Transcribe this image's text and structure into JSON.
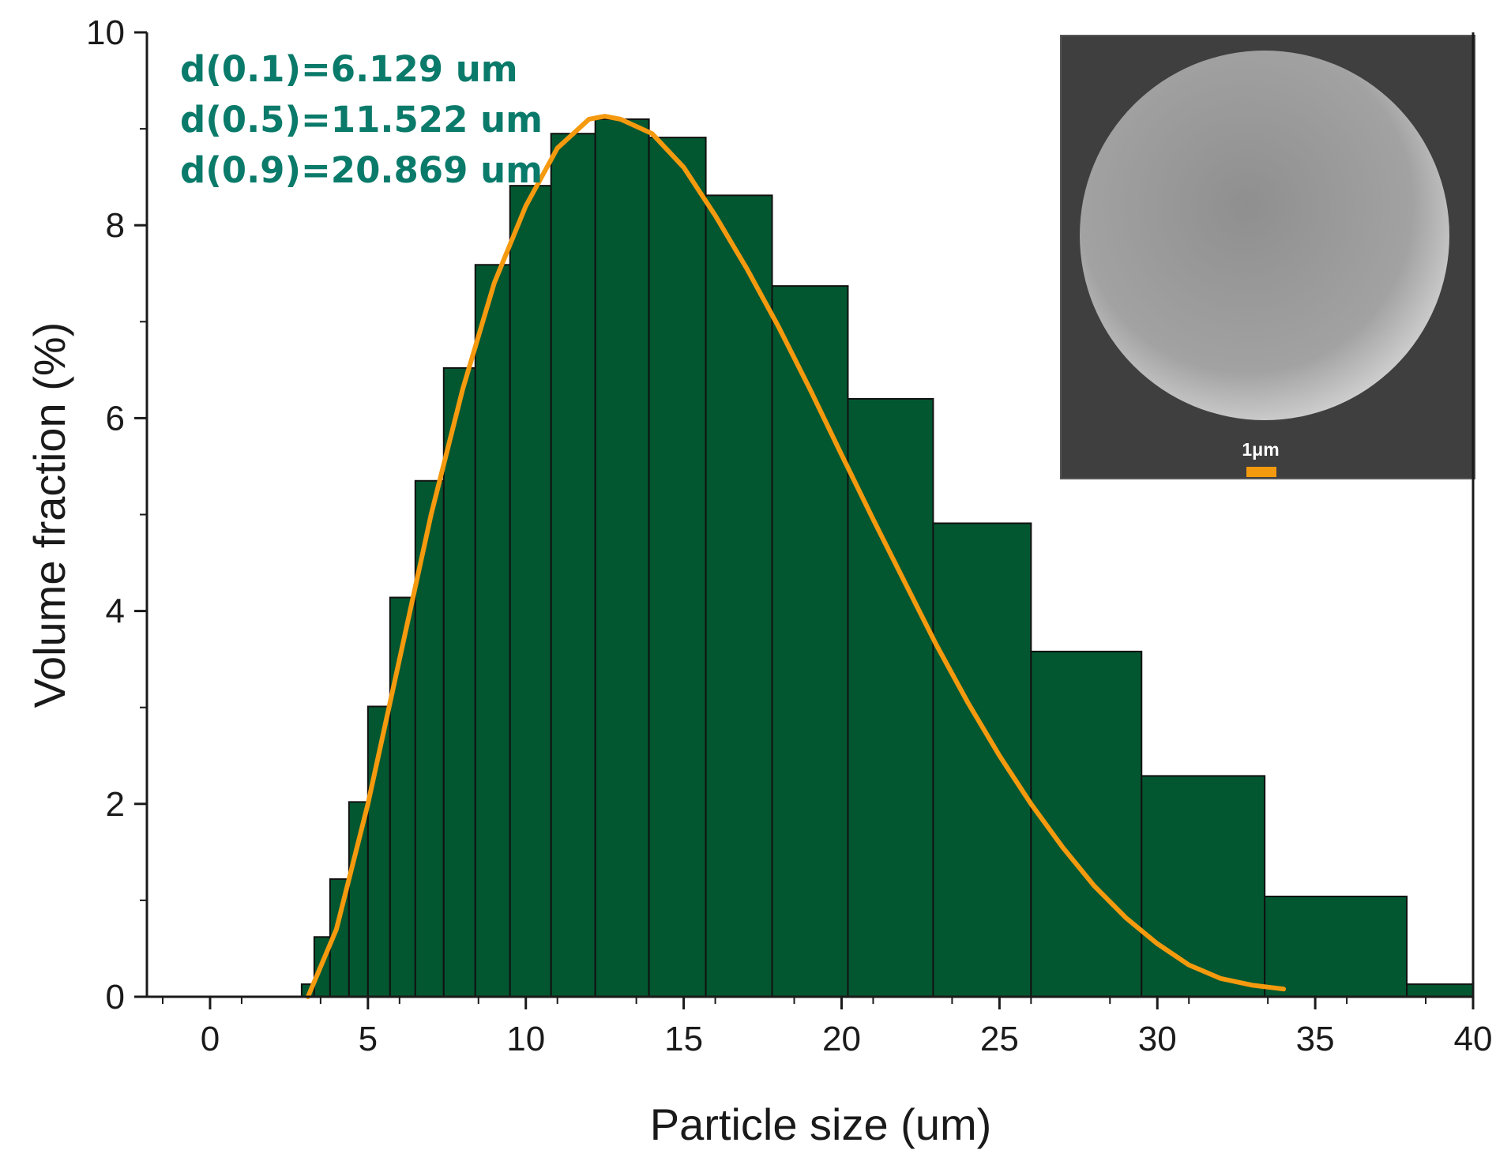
{
  "chart_data": {
    "type": "bar",
    "xlabel": "Particle size (um)",
    "ylabel": "Volume fraction (%)",
    "xlim": [
      -2,
      40
    ],
    "ylim": [
      0,
      10
    ],
    "x_ticks": [
      0,
      5,
      10,
      15,
      20,
      25,
      30,
      35,
      40
    ],
    "y_ticks": [
      0,
      2,
      4,
      6,
      8,
      10
    ],
    "bars": [
      {
        "x0": 2.9,
        "x1": 3.3,
        "value": 0.13
      },
      {
        "x0": 3.3,
        "x1": 3.8,
        "value": 0.62
      },
      {
        "x0": 3.8,
        "x1": 4.4,
        "value": 1.22
      },
      {
        "x0": 4.4,
        "x1": 5.0,
        "value": 2.02
      },
      {
        "x0": 5.0,
        "x1": 5.7,
        "value": 3.01
      },
      {
        "x0": 5.7,
        "x1": 6.5,
        "value": 4.14
      },
      {
        "x0": 6.5,
        "x1": 7.4,
        "value": 5.35
      },
      {
        "x0": 7.4,
        "x1": 8.4,
        "value": 6.52
      },
      {
        "x0": 8.4,
        "x1": 9.5,
        "value": 7.59
      },
      {
        "x0": 9.5,
        "x1": 10.8,
        "value": 8.41
      },
      {
        "x0": 10.8,
        "x1": 12.2,
        "value": 8.95
      },
      {
        "x0": 12.2,
        "x1": 13.9,
        "value": 9.1
      },
      {
        "x0": 13.9,
        "x1": 15.7,
        "value": 8.91
      },
      {
        "x0": 15.7,
        "x1": 17.8,
        "value": 8.31
      },
      {
        "x0": 17.8,
        "x1": 20.2,
        "value": 7.37
      },
      {
        "x0": 20.2,
        "x1": 22.9,
        "value": 6.2
      },
      {
        "x0": 22.9,
        "x1": 26.0,
        "value": 4.91
      },
      {
        "x0": 26.0,
        "x1": 29.5,
        "value": 3.58
      },
      {
        "x0": 29.5,
        "x1": 33.4,
        "value": 2.29
      },
      {
        "x0": 33.4,
        "x1": 37.9,
        "value": 1.04
      },
      {
        "x0": 37.9,
        "x1": 43.0,
        "value": 0.13
      }
    ],
    "fit_curve": {
      "color": "#f59a0e",
      "points": [
        [
          3.1,
          0.0
        ],
        [
          4.0,
          0.7
        ],
        [
          5.0,
          2.0
        ],
        [
          6.0,
          3.5
        ],
        [
          7.0,
          5.0
        ],
        [
          8.0,
          6.3
        ],
        [
          9.0,
          7.4
        ],
        [
          10.0,
          8.2
        ],
        [
          11.0,
          8.8
        ],
        [
          12.0,
          9.1
        ],
        [
          12.5,
          9.13
        ],
        [
          13.0,
          9.1
        ],
        [
          14.0,
          8.95
        ],
        [
          15.0,
          8.6
        ],
        [
          16.0,
          8.1
        ],
        [
          17.0,
          7.55
        ],
        [
          18.0,
          6.95
        ],
        [
          19.0,
          6.3
        ],
        [
          20.0,
          5.62
        ],
        [
          21.0,
          4.95
        ],
        [
          22.0,
          4.3
        ],
        [
          23.0,
          3.65
        ],
        [
          24.0,
          3.05
        ],
        [
          25.0,
          2.5
        ],
        [
          26.0,
          2.0
        ],
        [
          27.0,
          1.55
        ],
        [
          28.0,
          1.15
        ],
        [
          29.0,
          0.82
        ],
        [
          30.0,
          0.55
        ],
        [
          31.0,
          0.33
        ],
        [
          32.0,
          0.19
        ],
        [
          33.0,
          0.12
        ],
        [
          34.0,
          0.08
        ]
      ]
    },
    "annotations": [
      "d(0.1)=6.129 um",
      "d(0.5)=11.522 um",
      "d(0.9)=20.869 um"
    ],
    "bar_color": "#035730",
    "annotation_color": "#0a7a6a"
  },
  "inset": {
    "scale_label": "1μm",
    "scale_bar_color": "#f59a0e",
    "background_color": "#3f3f3f",
    "sphere_color": "#a9a9a9"
  }
}
